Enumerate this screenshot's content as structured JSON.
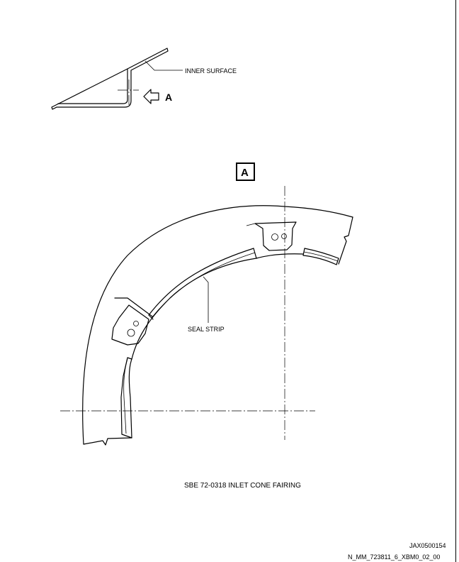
{
  "section_view": {
    "inner_surface_label": "INNER SURFACE",
    "view_arrow_label": "A"
  },
  "detail": {
    "view_box_label": "A",
    "seal_strip_label": "SEAL STRIP"
  },
  "caption": "SBE 72-0318 INLET CONE FAIRING",
  "footer": {
    "figure_id": "JAX0500154",
    "file_ref": "N_MM_723811_6_XBM0_02_00"
  }
}
